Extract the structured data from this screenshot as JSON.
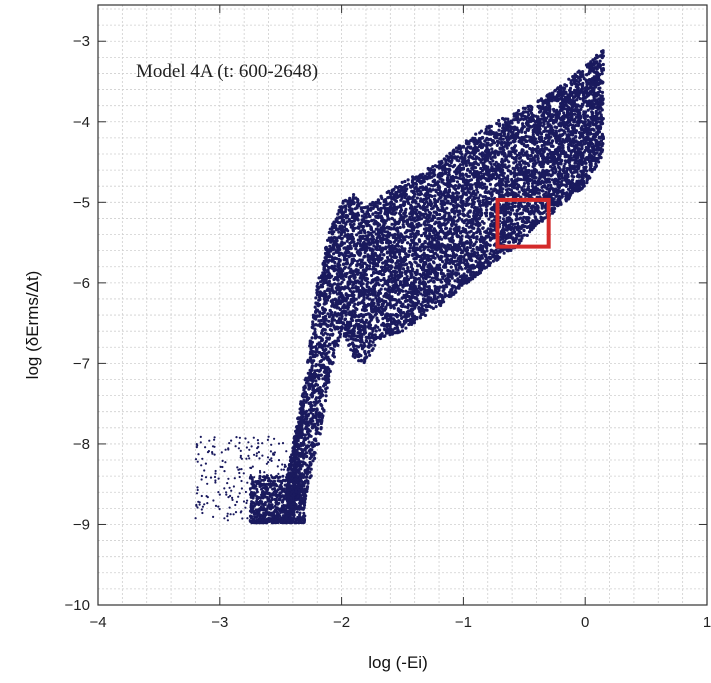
{
  "chart_data": {
    "type": "scatter",
    "annotation": "Model 4A  (t: 600-2648)",
    "xlabel": "log (-Ei)",
    "ylabel": "log (δErms/Δt)",
    "xlim": [
      -4,
      1
    ],
    "ylim": [
      -10,
      -2.55
    ],
    "x_ticks": [
      "−4",
      "−3",
      "−2",
      "−1",
      "0",
      "1"
    ],
    "x_tick_values": [
      -4,
      -3,
      -2,
      -1,
      0,
      1
    ],
    "y_ticks": [
      "−3",
      "−4",
      "−5",
      "−6",
      "−7",
      "−8",
      "−9",
      "−10"
    ],
    "y_tick_values": [
      -3,
      -4,
      -5,
      -6,
      -7,
      -8,
      -9,
      -10
    ],
    "x_minor_step": 0.2,
    "y_minor_step": 0.2,
    "grid": true,
    "point_color": "#1a1a5e",
    "highlight_color": "#d42a2a",
    "highlight_region": {
      "x": [
        -0.72,
        -0.3
      ],
      "y": [
        -5.55,
        -4.97
      ]
    },
    "series": [
      {
        "envelope_x": [
          -2.45,
          -2.3,
          -2.2,
          -2.1,
          -2.0,
          -1.9,
          -1.8,
          -1.7,
          -1.5,
          -1.2,
          -1.0,
          -0.8,
          -0.6,
          -0.4,
          -0.2,
          0.0,
          0.15
        ],
        "upper_y": [
          -8.4,
          -7.2,
          -6.0,
          -5.35,
          -5.0,
          -4.9,
          -5.05,
          -4.95,
          -4.75,
          -4.5,
          -4.25,
          -4.05,
          -3.9,
          -3.75,
          -3.55,
          -3.3,
          -3.1
        ],
        "lower_y": [
          -8.95,
          -8.7,
          -8.1,
          -7.2,
          -6.6,
          -6.95,
          -7.0,
          -6.7,
          -6.6,
          -6.3,
          -6.05,
          -5.8,
          -5.6,
          -5.3,
          -5.05,
          -4.8,
          -4.4
        ],
        "sparse_tail": {
          "x": [
            -3.2,
            -2.45
          ],
          "y": [
            -8.95,
            -7.9
          ]
        },
        "bottom_blob": {
          "x": [
            -2.75,
            -2.3
          ],
          "y": [
            -8.98,
            -8.4
          ]
        }
      }
    ]
  }
}
